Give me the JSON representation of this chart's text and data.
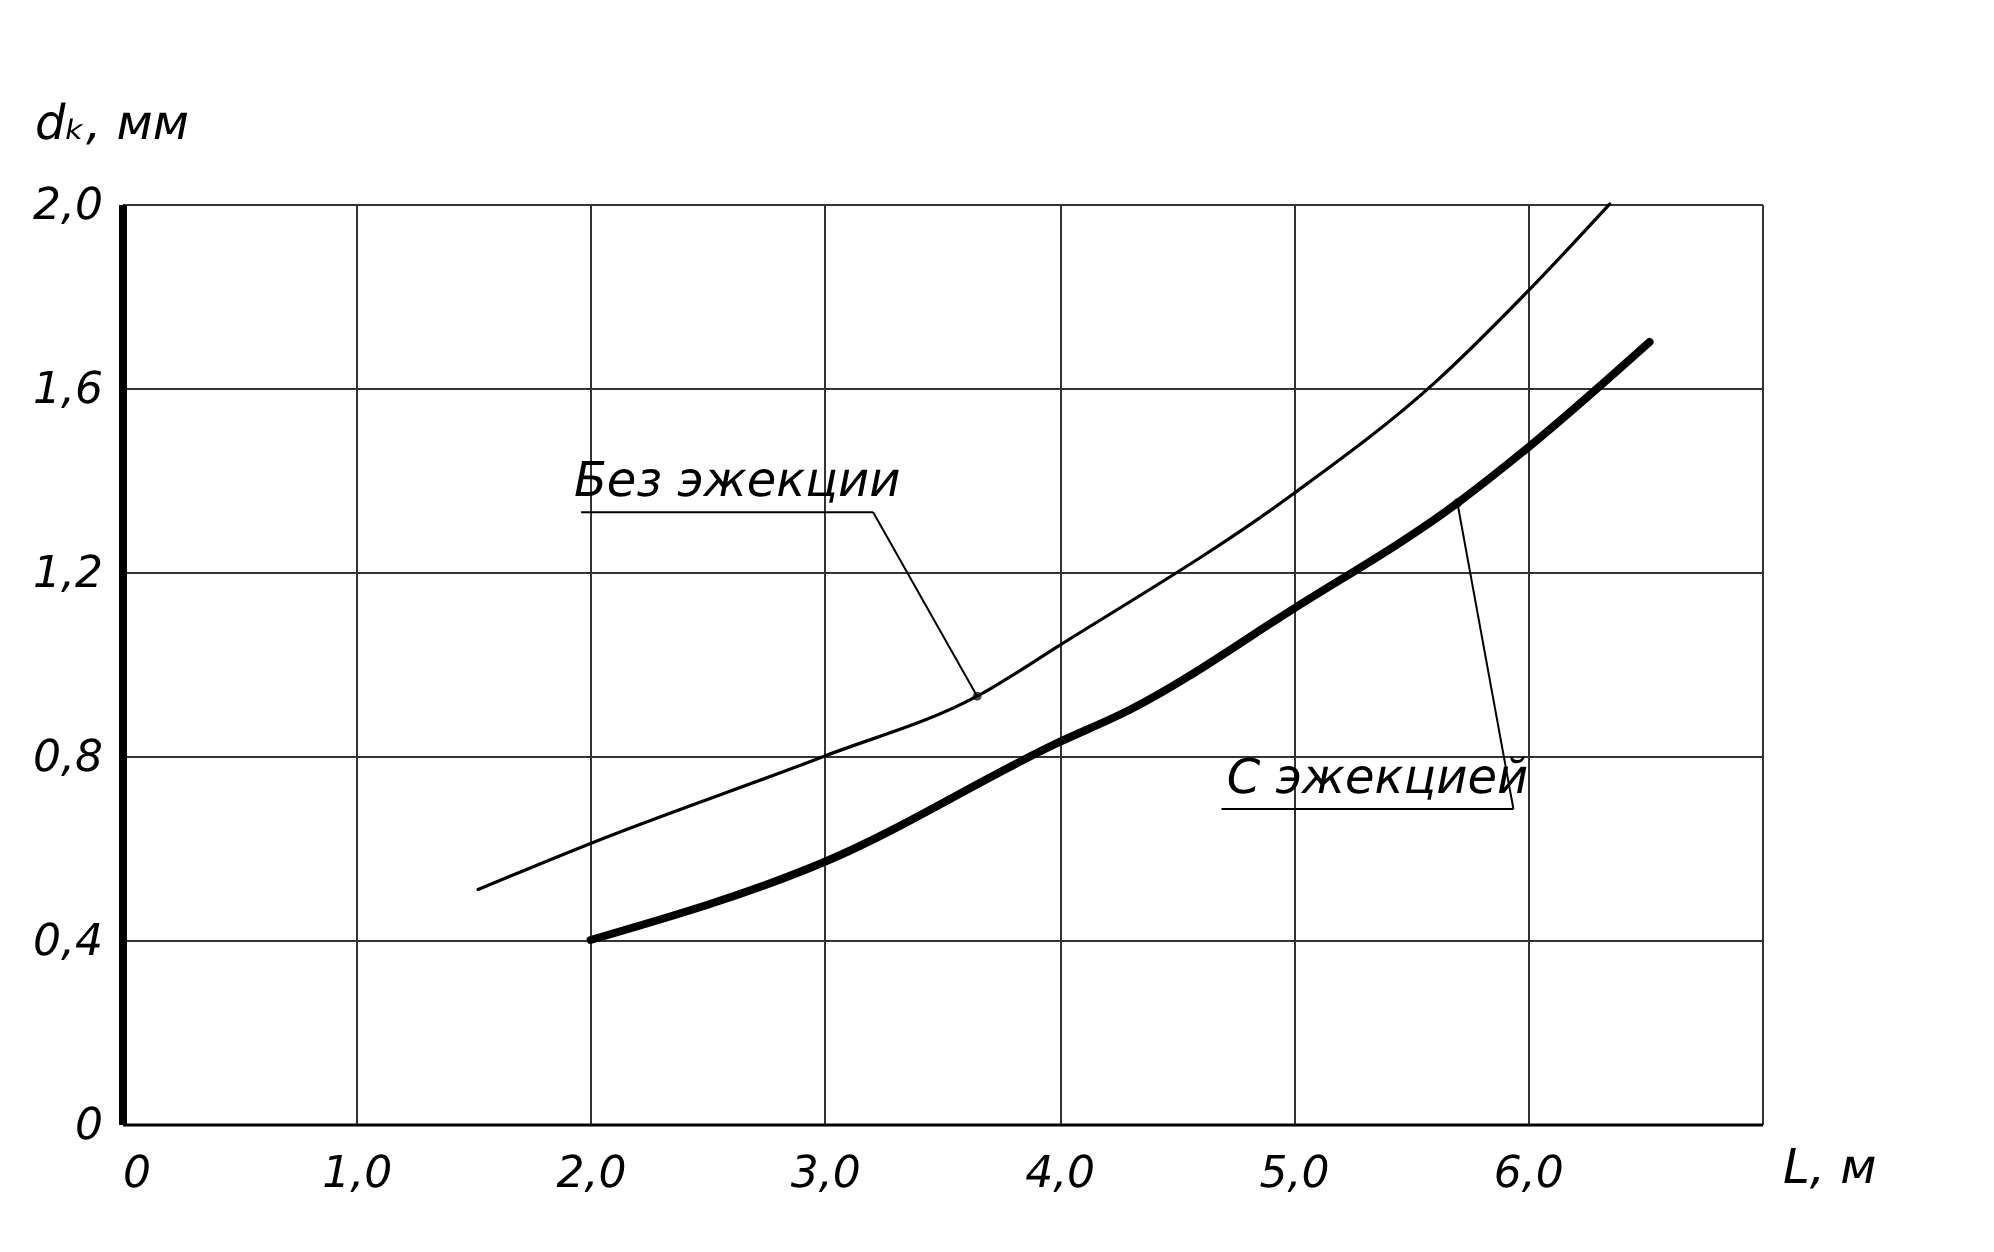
{
  "chart_data": {
    "type": "line",
    "xlabel": "L, м",
    "ylabel": "dₖ, мм",
    "xlim": [
      0,
      7
    ],
    "ylim": [
      0,
      2
    ],
    "xticks": [
      0,
      {
        "value": 1,
        "label": "1,0"
      },
      {
        "value": 2,
        "label": "2,0"
      },
      {
        "value": 3,
        "label": "3,0"
      },
      {
        "value": 4,
        "label": "4,0"
      },
      {
        "value": 5,
        "label": "5,0"
      },
      {
        "value": 6,
        "label": "6,0"
      },
      {
        "value": 7,
        "label": null
      }
    ],
    "yticks": [
      0,
      {
        "value": 0.4,
        "label": "0,4"
      },
      {
        "value": 0.8,
        "label": "0,8"
      },
      {
        "value": 1.2,
        "label": "1,2"
      },
      {
        "value": 1.6,
        "label": "1,6"
      },
      {
        "value": 2,
        "label": "2,0"
      }
    ],
    "grid": true,
    "line_style": "solid",
    "marker": "none",
    "series": [
      {
        "color": "#000000",
        "x": [
          1.52,
          2.0,
          3.0,
          3.65,
          4.0,
          5.0,
          5.6,
          6.0,
          6.35
        ],
        "values": [
          0.51,
          0.61,
          0.8,
          0.93,
          1.04,
          1.37,
          1.61,
          1.81,
          2.0
        ]
      },
      {
        "color": "#000000",
        "x": [
          2.0,
          3.0,
          4.0,
          4.3,
          5.0,
          5.7,
          6.0,
          6.52
        ],
        "values": [
          0.4,
          0.57,
          0.83,
          0.9,
          1.12,
          1.35,
          1.47,
          1.7
        ]
      }
    ],
    "annotations": [
      {
        "text": "Без эжекции",
        "x": 3.65,
        "y": 0.93
      },
      {
        "text": "С эжекцией",
        "x": 5.7,
        "y": 1.35
      }
    ]
  }
}
